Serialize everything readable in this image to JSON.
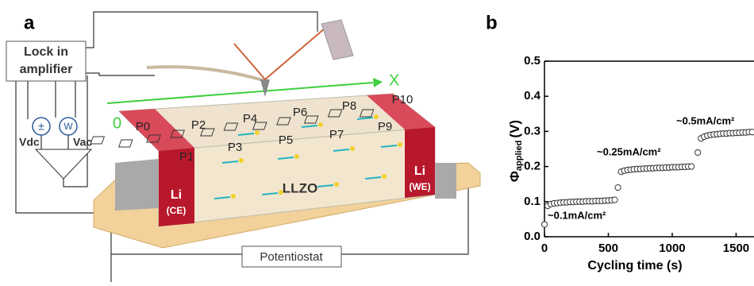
{
  "panel_a": {
    "label": "a",
    "lock_in": [
      "Lock in",
      "amplifier"
    ],
    "source_dc": "±",
    "source_ac": "W",
    "vdc": "Vdc",
    "vac": "Vac",
    "axis_x": "X",
    "axis_origin": "0",
    "points": [
      "P0",
      "P1",
      "P2",
      "P3",
      "P4",
      "P5",
      "P6",
      "P7",
      "P8",
      "P9",
      "P10"
    ],
    "ce": [
      "Li",
      "(CE)"
    ],
    "we": [
      "Li",
      "(WE)"
    ],
    "electrolyte": "LLZO",
    "potentiostat": "Potentiostat"
  },
  "chart_data": {
    "type": "scatter",
    "panel_label": "b",
    "x_label": "Cycling time (s)",
    "y_label": {
      "symbol": "Φ",
      "subscript": "applied",
      "unit": "(V)"
    },
    "x": [
      0,
      25,
      50,
      75,
      100,
      125,
      150,
      175,
      200,
      225,
      250,
      275,
      300,
      325,
      350,
      375,
      400,
      425,
      450,
      475,
      500,
      525,
      550,
      575,
      600,
      625,
      650,
      675,
      700,
      725,
      750,
      775,
      800,
      825,
      850,
      875,
      900,
      925,
      950,
      975,
      1000,
      1025,
      1050,
      1075,
      1100,
      1125,
      1150,
      1200,
      1225,
      1250,
      1275,
      1300,
      1325,
      1350,
      1375,
      1400,
      1425,
      1450,
      1475,
      1500,
      1525,
      1550,
      1575,
      1600,
      1625
    ],
    "values": [
      0.035,
      0.088,
      0.093,
      0.095,
      0.096,
      0.097,
      0.098,
      0.098,
      0.099,
      0.099,
      0.1,
      0.1,
      0.1,
      0.101,
      0.101,
      0.101,
      0.102,
      0.102,
      0.102,
      0.103,
      0.103,
      0.104,
      0.105,
      0.14,
      0.185,
      0.188,
      0.19,
      0.191,
      0.192,
      0.193,
      0.193,
      0.194,
      0.194,
      0.195,
      0.195,
      0.196,
      0.196,
      0.196,
      0.197,
      0.197,
      0.198,
      0.198,
      0.198,
      0.199,
      0.199,
      0.2,
      0.2,
      0.24,
      0.28,
      0.285,
      0.288,
      0.29,
      0.291,
      0.292,
      0.293,
      0.294,
      0.294,
      0.295,
      0.295,
      0.296,
      0.296,
      0.297,
      0.297,
      0.298,
      0.298
    ],
    "color": "#333333",
    "xlim": [
      0,
      1640
    ],
    "ylim": [
      0,
      0.5
    ],
    "xticks": [
      0,
      500,
      1000,
      1500
    ],
    "yticks": [
      {
        "value": 0,
        "label": "0.0"
      },
      0.1,
      0.2,
      0.3,
      0.4,
      0.5
    ],
    "annotations": [
      "~0.1mA/cm²",
      "~0.25mA/cm²",
      "~0.5mA/cm²"
    ]
  }
}
